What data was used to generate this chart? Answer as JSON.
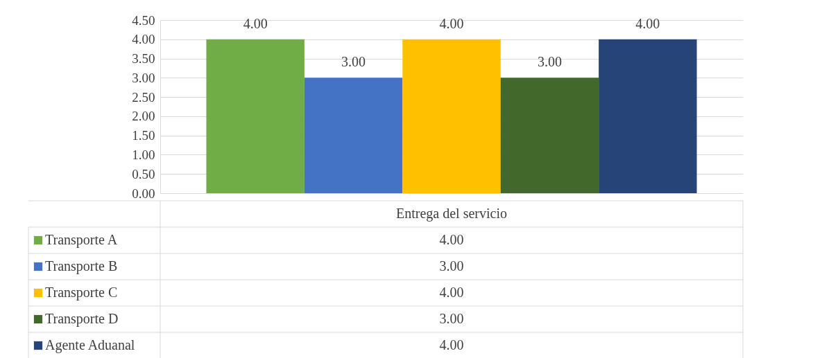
{
  "chart_data": {
    "type": "bar",
    "categories": [
      "Entrega del servicio"
    ],
    "series": [
      {
        "name": "Transporte A",
        "color": "#70ad47",
        "values": [
          4
        ],
        "value_labels": [
          "4.00"
        ]
      },
      {
        "name": "Transporte B",
        "color": "#4472c4",
        "values": [
          3
        ],
        "value_labels": [
          "3.00"
        ]
      },
      {
        "name": "Transporte C",
        "color": "#ffc000",
        "values": [
          4
        ],
        "value_labels": [
          "4.00"
        ]
      },
      {
        "name": "Transporte D",
        "color": "#43682b",
        "values": [
          3
        ],
        "value_labels": [
          "3.00"
        ]
      },
      {
        "name": "Agente Aduanal",
        "color": "#264478",
        "values": [
          4
        ],
        "value_labels": [
          "4.00"
        ]
      }
    ],
    "ylim": [
      0,
      4.5
    ],
    "yticks": [
      {
        "value": 0,
        "label": "0.00"
      },
      {
        "value": 0.5,
        "label": "0.50"
      },
      {
        "value": 1,
        "label": "1.00"
      },
      {
        "value": 1.5,
        "label": "1.50"
      },
      {
        "value": 2,
        "label": "2.00"
      },
      {
        "value": 2.5,
        "label": "2.50"
      },
      {
        "value": 3,
        "label": "3.00"
      },
      {
        "value": 3.5,
        "label": "3.50"
      },
      {
        "value": 4,
        "label": "4.00"
      },
      {
        "value": 4.5,
        "label": "4.50"
      }
    ],
    "grid": "y",
    "legend": "bottom"
  }
}
